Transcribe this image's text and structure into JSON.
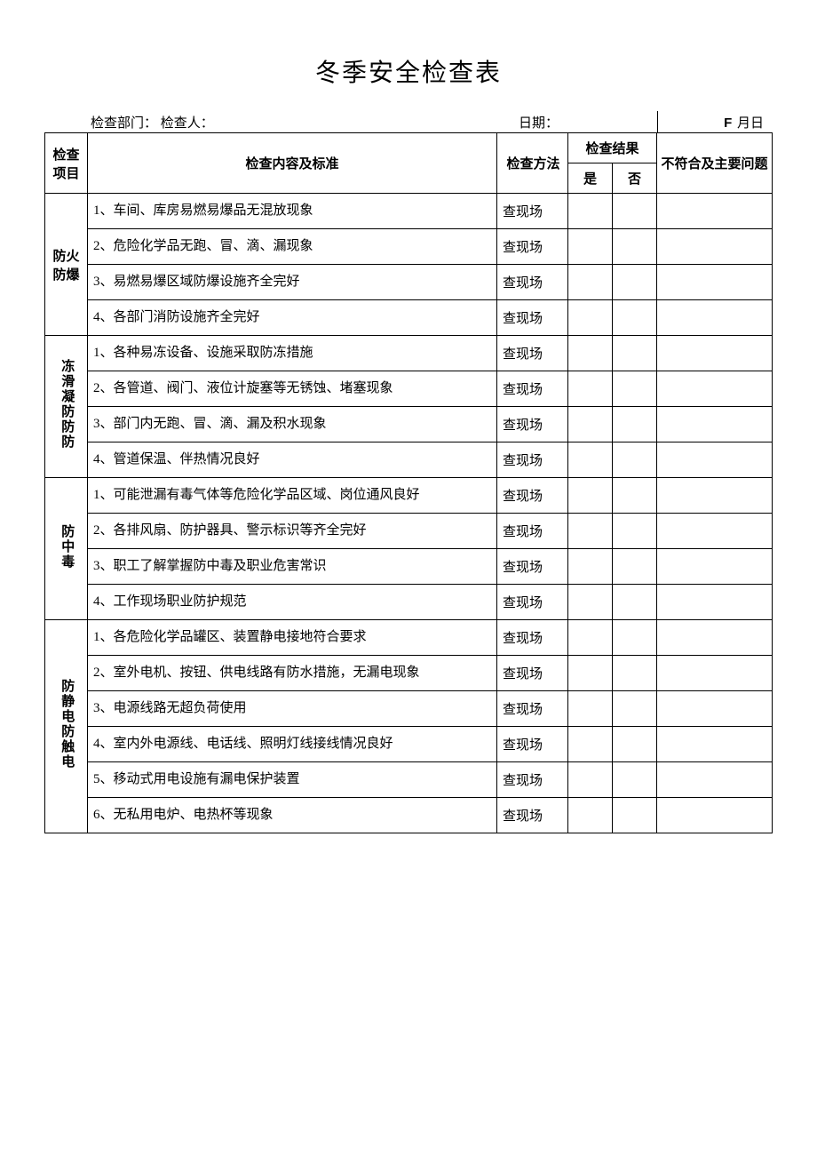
{
  "title": "冬季安全检查表",
  "header": {
    "dept_label": "检查部门：",
    "inspector_label": "检查人：",
    "date_label": "日期：",
    "date_f": "F",
    "date_suffix": "月日"
  },
  "table_headers": {
    "category": "检查\n项目",
    "content": "检查内容及标准",
    "method": "检查方法",
    "result": "检查结果",
    "yes": "是",
    "no": "否",
    "issue": "不符合及主要问题"
  },
  "sections": [
    {
      "category": "防火防爆",
      "vertical": false,
      "items": [
        {
          "content": "1、车间、库房易燃易爆品无混放现象",
          "method": "查现场"
        },
        {
          "content": "2、危险化学品无跑、冒、滴、漏现象",
          "method": "查现场"
        },
        {
          "content": "3、易燃易爆区域防爆设施齐全完好",
          "method": "查现场"
        },
        {
          "content": "4、各部门消防设施齐全完好",
          "method": "查现场"
        }
      ]
    },
    {
      "category": "冻滑凝防防防",
      "vertical": true,
      "items": [
        {
          "content": "1、各种易冻设备、设施采取防冻措施",
          "method": "查现场"
        },
        {
          "content": "2、各管道、阀门、液位计旋塞等无锈蚀、堵塞现象",
          "method": "查现场"
        },
        {
          "content": "3、部门内无跑、冒、滴、漏及积水现象",
          "method": "查现场"
        },
        {
          "content": "4、管道保温、伴热情况良好",
          "method": "查现场"
        }
      ]
    },
    {
      "category": "防中毒",
      "vertical": true,
      "items": [
        {
          "content": "1、可能泄漏有毒气体等危险化学品区域、岗位通风良好",
          "method": "查现场"
        },
        {
          "content": "2、各排风扇、防护器具、警示标识等齐全完好",
          "method": "查现场"
        },
        {
          "content": "3、职工了解掌握防中毒及职业危害常识",
          "method": "查现场"
        },
        {
          "content": "4、工作现场职业防护规范",
          "method": "查现场"
        }
      ]
    },
    {
      "category": "防静电防触电",
      "vertical": true,
      "items": [
        {
          "content": "1、各危险化学品罐区、装置静电接地符合要求",
          "method": "查现场"
        },
        {
          "content": "2、室外电机、按钮、供电线路有防水措施，无漏电现象",
          "method": "查现场"
        },
        {
          "content": "3、电源线路无超负荷使用",
          "method": "查现场"
        },
        {
          "content": "4、室内外电源线、电话线、照明灯线接线情况良好",
          "method": "查现场"
        },
        {
          "content": "5、移动式用电设施有漏电保护装置",
          "method": "查现场"
        },
        {
          "content": "6、无私用电炉、电热杯等现象",
          "method": "查现场"
        }
      ]
    }
  ],
  "colors": {
    "text": "#000000",
    "background": "#ffffff",
    "border": "#000000"
  }
}
